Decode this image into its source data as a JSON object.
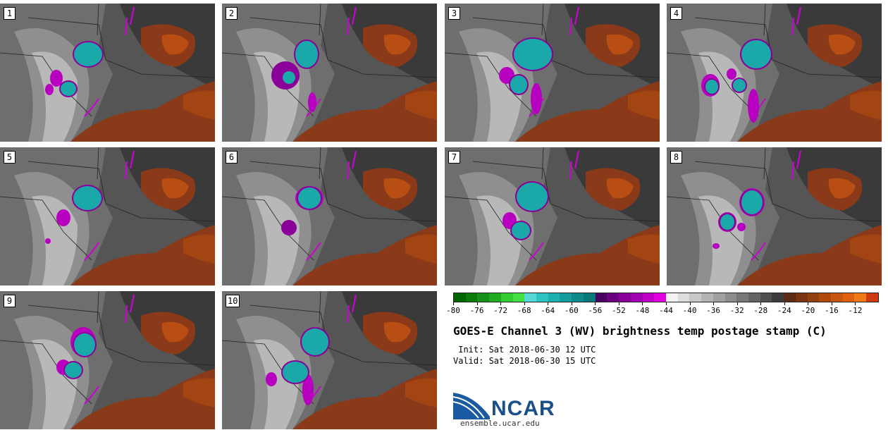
{
  "panels": [
    {
      "label": "1",
      "storms": [
        [
          125,
          72,
          20,
          17,
          "cyan"
        ],
        [
          97,
          121,
          11,
          10,
          "cyan"
        ]
      ],
      "mag": [
        [
          80,
          106,
          9,
          12
        ],
        [
          70,
          122,
          6,
          8
        ]
      ]
    },
    {
      "label": "2",
      "storms": [
        [
          120,
          72,
          16,
          19,
          "cyan"
        ],
        [
          90,
          102,
          18,
          18,
          "mag"
        ],
        [
          95,
          105,
          9,
          9,
          "cyan"
        ]
      ],
      "mag": [
        [
          114,
          66,
          8,
          8
        ],
        [
          128,
          140,
          6,
          14
        ]
      ]
    },
    {
      "label": "3",
      "storms": [
        [
          125,
          72,
          27,
          22,
          "cyan"
        ],
        [
          105,
          115,
          12,
          13,
          "cyan"
        ]
      ],
      "mag": [
        [
          88,
          102,
          11,
          12
        ],
        [
          130,
          135,
          8,
          22
        ]
      ]
    },
    {
      "label": "4",
      "storms": [
        [
          127,
          72,
          21,
          20,
          "cyan"
        ],
        [
          103,
          116,
          9,
          9,
          "cyan"
        ],
        [
          64,
          118,
          9,
          10,
          "cyan"
        ]
      ],
      "mag": [
        [
          62,
          116,
          13,
          16
        ],
        [
          92,
          100,
          7,
          8
        ],
        [
          123,
          145,
          8,
          24
        ]
      ]
    },
    {
      "label": "5",
      "storms": [
        [
          124,
          72,
          20,
          17,
          "cyan"
        ]
      ],
      "mag": [
        [
          90,
          100,
          10,
          12
        ],
        [
          68,
          133,
          4,
          4
        ]
      ]
    },
    {
      "label": "6",
      "storms": [
        [
          124,
          72,
          16,
          15,
          "cyan"
        ],
        [
          95,
          114,
          9,
          9,
          "mag"
        ]
      ],
      "mag": [
        [
          124,
          72,
          20,
          17
        ]
      ]
    },
    {
      "label": "7",
      "storms": [
        [
          124,
          70,
          22,
          20,
          "cyan"
        ],
        [
          108,
          118,
          13,
          12,
          "cyan"
        ]
      ],
      "mag": [
        [
          92,
          104,
          10,
          12
        ]
      ]
    },
    {
      "label": "8",
      "storms": [
        [
          121,
          78,
          15,
          17,
          "cyan"
        ],
        [
          86,
          106,
          10,
          11,
          "cyan"
        ]
      ],
      "mag": [
        [
          121,
          78,
          18,
          20
        ],
        [
          86,
          106,
          13,
          14
        ],
        [
          106,
          113,
          6,
          6
        ],
        [
          70,
          140,
          5,
          4
        ]
      ]
    },
    {
      "label": "9",
      "storms": [
        [
          120,
          76,
          15,
          16,
          "cyan"
        ],
        [
          104,
          112,
          12,
          11,
          "cyan"
        ]
      ],
      "mag": [
        [
          118,
          72,
          18,
          21
        ],
        [
          90,
          108,
          10,
          11
        ]
      ]
    },
    {
      "label": "10",
      "storms": [
        [
          132,
          72,
          19,
          19,
          "cyan"
        ],
        [
          104,
          115,
          18,
          15,
          "cyan"
        ]
      ],
      "mag": [
        [
          70,
          125,
          8,
          10
        ],
        [
          122,
          140,
          8,
          22
        ]
      ]
    }
  ],
  "colorbar": {
    "colors": [
      "#006400",
      "#0a7a0a",
      "#15911a",
      "#22aa22",
      "#33cc33",
      "#44e044",
      "#55d8d8",
      "#2fc4c4",
      "#1fb0b0",
      "#159c9c",
      "#0e8a8a",
      "#087878",
      "#4a0060",
      "#6a0080",
      "#880099",
      "#a000b0",
      "#c000c8",
      "#e000e0",
      "#f2f2f2",
      "#dddddd",
      "#c8c8c8",
      "#b4b4b4",
      "#a0a0a0",
      "#8c8c8c",
      "#787878",
      "#646464",
      "#505050",
      "#3c3c3c",
      "#5a2d14",
      "#7a3510",
      "#93400f",
      "#b04a0c",
      "#c75610",
      "#e06010",
      "#f07a18",
      "#d03a10"
    ],
    "ticks": [
      "-80",
      "-76",
      "-72",
      "-68",
      "-64",
      "-60",
      "-56",
      "-52",
      "-48",
      "-44",
      "-40",
      "-36",
      "-32",
      "-28",
      "-24",
      "-20",
      "-16",
      "-12"
    ]
  },
  "title": "GOES-E Channel 3 (WV) brightness temp postage stamp (C)",
  "init": " Init: Sat 2018-06-30 12 UTC",
  "valid": "Valid: Sat 2018-06-30 15 UTC",
  "logo": {
    "text": "NCAR",
    "site": "ensemble.ucar.edu"
  }
}
